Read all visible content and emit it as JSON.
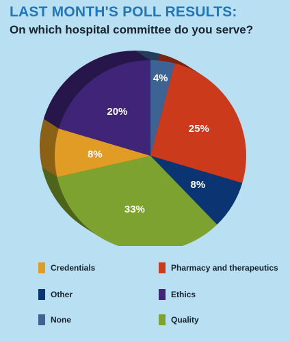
{
  "header": {
    "title": "LAST MONTH'S POLL RESULTS:",
    "subtitle": "On which hospital committee do you serve?"
  },
  "chart_data": {
    "type": "pie",
    "title": "LAST MONTH'S POLL RESULTS:",
    "subtitle": "On which hospital committee do you serve?",
    "slices": [
      {
        "label": "None",
        "value": 4,
        "display": "4%",
        "color": "#3d6294"
      },
      {
        "label": "Pharmacy and therapeutics",
        "value": 25,
        "display": "25%",
        "color": "#cc3a1c"
      },
      {
        "label": "Other",
        "value": 8,
        "display": "8%",
        "color": "#0a3572"
      },
      {
        "label": "Quality",
        "value": 33,
        "display": "33%",
        "color": "#7da22f"
      },
      {
        "label": "Credentials",
        "value": 8,
        "display": "8%",
        "color": "#e09c25"
      },
      {
        "label": "Ethics",
        "value": 20,
        "display": "20%",
        "color": "#3f2478"
      }
    ],
    "legend": [
      {
        "label": "Credentials",
        "color": "#e09c25"
      },
      {
        "label": "Pharmacy and therapeutics",
        "color": "#cc3a1c"
      },
      {
        "label": "Other",
        "color": "#0a3572"
      },
      {
        "label": "Ethics",
        "color": "#3f2478"
      },
      {
        "label": "None",
        "color": "#3d6294"
      },
      {
        "label": "Quality",
        "color": "#7da22f"
      }
    ],
    "legend_position": "bottom"
  }
}
